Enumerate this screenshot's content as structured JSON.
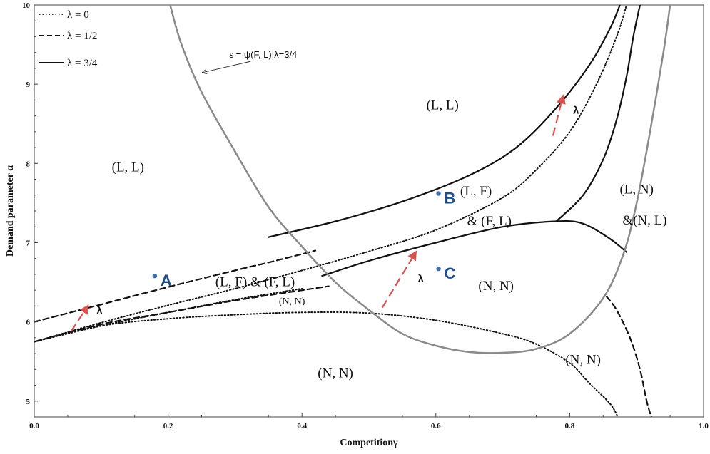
{
  "chart_data": {
    "type": "line",
    "title": "",
    "xlabel": "Competitionγ",
    "ylabel": "Demand parameter α",
    "xlim": [
      0.0,
      1.0
    ],
    "ylim": [
      4.8,
      10.0
    ],
    "x_ticks": [
      0.0,
      0.2,
      0.4,
      0.6,
      0.8,
      1.0
    ],
    "x_tick_labels": [
      "0.0",
      "0.2",
      "0.4",
      "0.6",
      "0.8",
      "1.0"
    ],
    "y_ticks": [
      5,
      6,
      7,
      8,
      9,
      10
    ],
    "y_tick_labels": [
      "5",
      "6",
      "7",
      "8",
      "9",
      "10"
    ],
    "grid": false,
    "legend_position": "top-left",
    "legend": [
      {
        "label": "λ = 0",
        "style": "dotted"
      },
      {
        "label": "λ = 1/2",
        "style": "dashed"
      },
      {
        "label": "λ = 3/4",
        "style": "solid"
      }
    ],
    "series": [
      {
        "group": "lambda-0",
        "style": "dotted",
        "points": [
          [
            0.0,
            5.75
          ],
          [
            0.1,
            5.95
          ],
          [
            0.2,
            6.04
          ],
          [
            0.3,
            6.09
          ],
          [
            0.4,
            6.12
          ],
          [
            0.5,
            6.11
          ],
          [
            0.6,
            6.02
          ],
          [
            0.7,
            5.85
          ],
          [
            0.75,
            5.72
          ],
          [
            0.8,
            5.48
          ],
          [
            0.83,
            5.22
          ],
          [
            0.86,
            4.97
          ],
          [
            0.872,
            4.8
          ]
        ]
      },
      {
        "group": "lambda-0",
        "style": "dotted",
        "points": [
          [
            0.0,
            5.75
          ],
          [
            0.1,
            5.99
          ],
          [
            0.2,
            6.21
          ],
          [
            0.3,
            6.42
          ],
          [
            0.4,
            6.65
          ],
          [
            0.5,
            6.89
          ],
          [
            0.6,
            7.16
          ],
          [
            0.7,
            7.57
          ],
          [
            0.75,
            7.92
          ],
          [
            0.8,
            8.4
          ],
          [
            0.84,
            9.0
          ],
          [
            0.87,
            9.6
          ],
          [
            0.885,
            10.0
          ]
        ]
      },
      {
        "group": "lambda-0",
        "style": "dotted",
        "points": [
          [
            0.0,
            5.75
          ],
          [
            0.1,
            5.95
          ],
          [
            0.2,
            6.12
          ],
          [
            0.3,
            6.28
          ],
          [
            0.4,
            6.42
          ]
        ]
      },
      {
        "group": "lambda-1/2",
        "style": "dashed",
        "points": [
          [
            0.0,
            6.0
          ],
          [
            0.1,
            6.22
          ],
          [
            0.2,
            6.44
          ],
          [
            0.3,
            6.65
          ],
          [
            0.35,
            6.75
          ],
          [
            0.42,
            6.9
          ]
        ]
      },
      {
        "group": "lambda-1/2",
        "style": "dashed",
        "points": [
          [
            0.0,
            5.75
          ],
          [
            0.1,
            5.97
          ],
          [
            0.2,
            6.12
          ],
          [
            0.3,
            6.27
          ],
          [
            0.4,
            6.4
          ],
          [
            0.44,
            6.45
          ]
        ]
      },
      {
        "group": "lambda-1/2",
        "style": "dashed",
        "points": [
          [
            0.855,
            6.32
          ],
          [
            0.87,
            6.15
          ],
          [
            0.89,
            5.8
          ],
          [
            0.905,
            5.4
          ],
          [
            0.915,
            5.0
          ],
          [
            0.922,
            4.8
          ]
        ]
      },
      {
        "group": "lambda-3/4",
        "style": "solid",
        "points": [
          [
            0.35,
            7.07
          ],
          [
            0.45,
            7.27
          ],
          [
            0.55,
            7.52
          ],
          [
            0.65,
            7.85
          ],
          [
            0.72,
            8.2
          ],
          [
            0.78,
            8.7
          ],
          [
            0.83,
            9.25
          ],
          [
            0.86,
            9.7
          ],
          [
            0.875,
            10.0
          ]
        ]
      },
      {
        "group": "lambda-3/4",
        "style": "solid",
        "points": [
          [
            0.43,
            6.58
          ],
          [
            0.5,
            6.77
          ],
          [
            0.6,
            7.0
          ],
          [
            0.7,
            7.2
          ],
          [
            0.78,
            7.27
          ],
          [
            0.82,
            7.24
          ],
          [
            0.86,
            7.05
          ],
          [
            0.885,
            6.88
          ]
        ]
      },
      {
        "group": "lambda-3/4",
        "style": "solid",
        "points": [
          [
            0.78,
            7.27
          ],
          [
            0.82,
            7.6
          ],
          [
            0.85,
            8.05
          ],
          [
            0.87,
            8.55
          ],
          [
            0.885,
            9.1
          ],
          [
            0.895,
            9.6
          ],
          [
            0.905,
            10.0
          ]
        ]
      },
      {
        "group": "epsilon-boundary",
        "style": "solid-gray",
        "points": [
          [
            0.203,
            10.0
          ],
          [
            0.22,
            9.5
          ],
          [
            0.25,
            8.9
          ],
          [
            0.3,
            8.15
          ],
          [
            0.35,
            7.45
          ],
          [
            0.4,
            6.95
          ],
          [
            0.45,
            6.5
          ],
          [
            0.5,
            6.15
          ],
          [
            0.55,
            5.85
          ],
          [
            0.6,
            5.7
          ],
          [
            0.65,
            5.62
          ],
          [
            0.7,
            5.61
          ],
          [
            0.75,
            5.66
          ],
          [
            0.8,
            5.85
          ],
          [
            0.85,
            6.3
          ],
          [
            0.88,
            6.85
          ],
          [
            0.9,
            7.5
          ],
          [
            0.92,
            8.4
          ],
          [
            0.94,
            9.4
          ],
          [
            0.95,
            10.0
          ]
        ]
      }
    ],
    "regions": [
      {
        "label": "(L, L)",
        "x": 0.14,
        "y": 7.9
      },
      {
        "label": "(L, L)",
        "x": 0.61,
        "y": 8.68
      },
      {
        "label": "(L, F)",
        "x": 0.66,
        "y": 7.6
      },
      {
        "label": "& (F, L)",
        "x": 0.68,
        "y": 7.22
      },
      {
        "label": "(L, F) & (F, L)",
        "x": 0.33,
        "y": 6.45
      },
      {
        "label": "(N, N)",
        "x": 0.385,
        "y": 6.22,
        "size": "small"
      },
      {
        "label": "(N, N)",
        "x": 0.69,
        "y": 6.4
      },
      {
        "label": "(N, N)",
        "x": 0.45,
        "y": 5.3
      },
      {
        "label": "(N, N)",
        "x": 0.82,
        "y": 5.47
      },
      {
        "label": "(L, N)",
        "x": 0.9,
        "y": 7.62
      },
      {
        "label": "&(N, L)",
        "x": 0.912,
        "y": 7.23
      }
    ],
    "points": [
      {
        "label": "A",
        "x": 0.18,
        "y": 6.58
      },
      {
        "label": "B",
        "x": 0.604,
        "y": 7.62
      },
      {
        "label": "C",
        "x": 0.604,
        "y": 6.67
      }
    ],
    "arrows": [
      {
        "label": "λ",
        "from": [
          0.055,
          5.88
        ],
        "to": [
          0.08,
          6.2
        ],
        "label_at": [
          0.093,
          6.1
        ]
      },
      {
        "label": "λ",
        "from": [
          0.52,
          6.18
        ],
        "to": [
          0.57,
          6.88
        ],
        "label_at": [
          0.573,
          6.5
        ]
      },
      {
        "label": "λ",
        "from": [
          0.775,
          8.35
        ],
        "to": [
          0.79,
          8.85
        ],
        "label_at": [
          0.805,
          8.63
        ]
      }
    ],
    "annotation": {
      "text": "ε = ψ(F, L)|λ=3/4",
      "target": [
        0.248,
        9.12
      ],
      "text_at": [
        0.27,
        9.36
      ]
    }
  }
}
